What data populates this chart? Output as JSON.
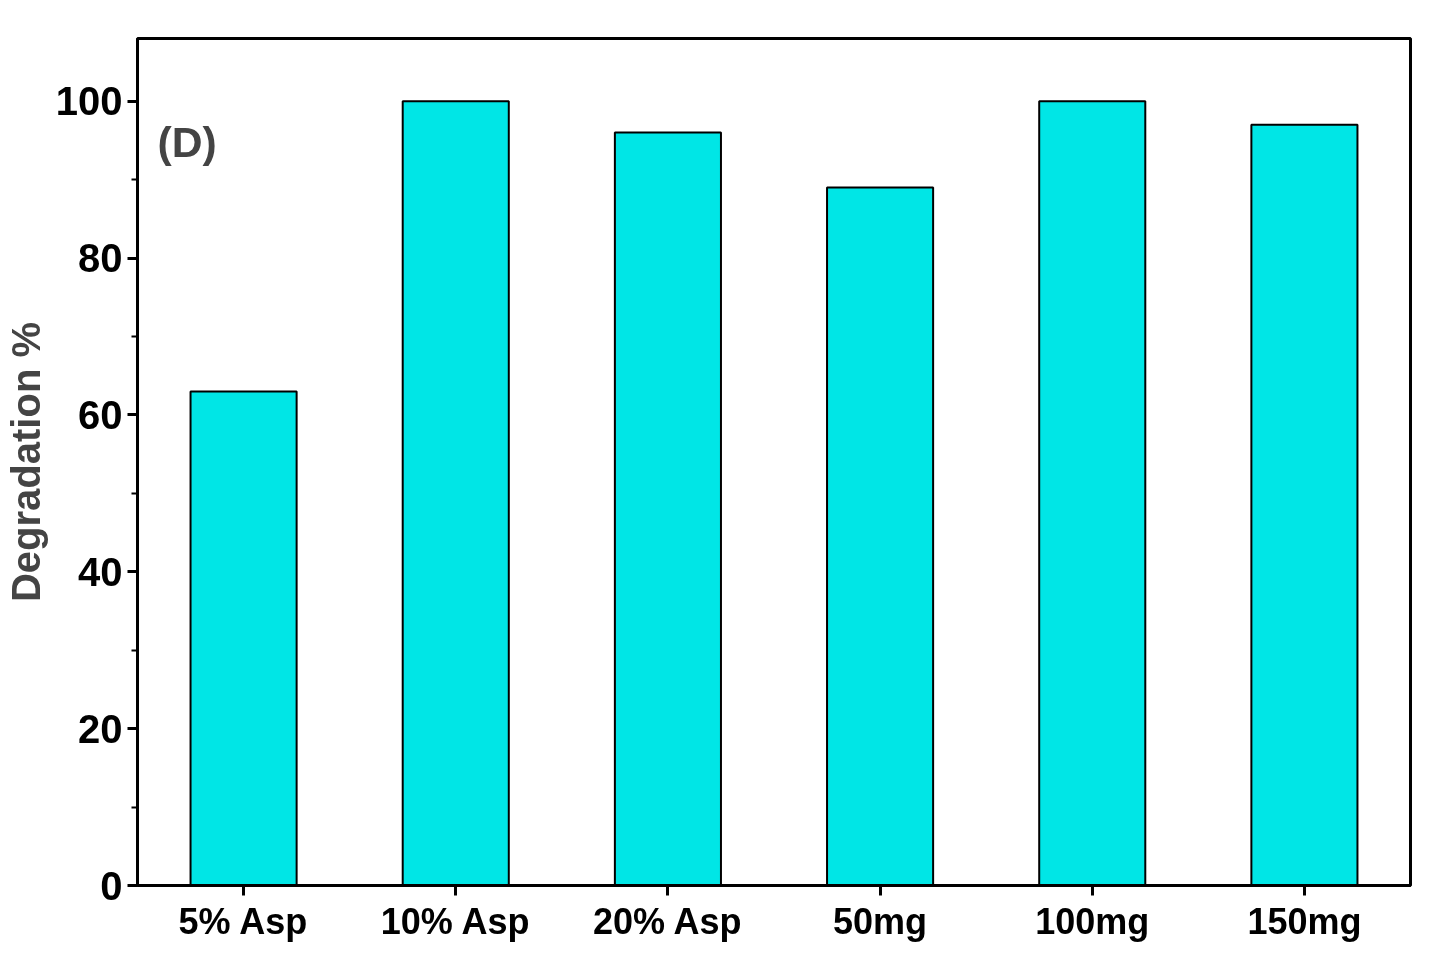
{
  "chart_data": {
    "type": "bar",
    "ylabel": "Degradation %",
    "categories": [
      "5% Asp",
      "10% Asp",
      "20% Asp",
      "50mg",
      "100mg",
      "150mg"
    ],
    "values": [
      63,
      100,
      96,
      89,
      100,
      97
    ],
    "color": "#00e6e6",
    "ylim": [
      0,
      108
    ],
    "yticks": [
      0,
      20,
      40,
      60,
      80,
      100
    ],
    "annotations": [
      "(D)"
    ]
  }
}
